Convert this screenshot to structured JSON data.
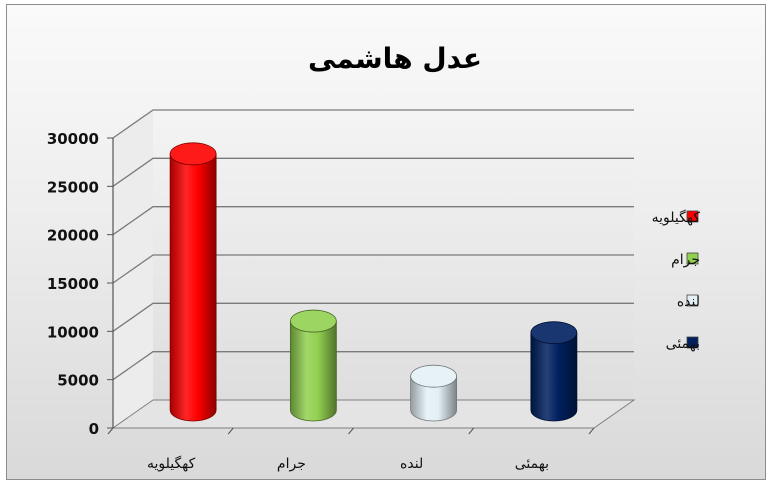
{
  "chart_data": {
    "type": "bar",
    "title": "عدل هاشمی",
    "categories": [
      "کهگیلویه",
      "جرام",
      "لنده",
      "بهمئی"
    ],
    "values": [
      26500,
      9200,
      3500,
      8000
    ],
    "colors": [
      "#ff0000",
      "#92d050",
      "#e4f0f6",
      "#002060"
    ],
    "ylim": [
      0,
      30000
    ],
    "yticks": [
      "0",
      "5000",
      "10000",
      "15000",
      "20000",
      "25000",
      "30000"
    ],
    "legend": {
      "position": "right",
      "entries": [
        "کهگیلویه",
        "جرام",
        "لنده",
        "بهمئی"
      ]
    },
    "grid": true,
    "style": "3d-cylinder"
  }
}
